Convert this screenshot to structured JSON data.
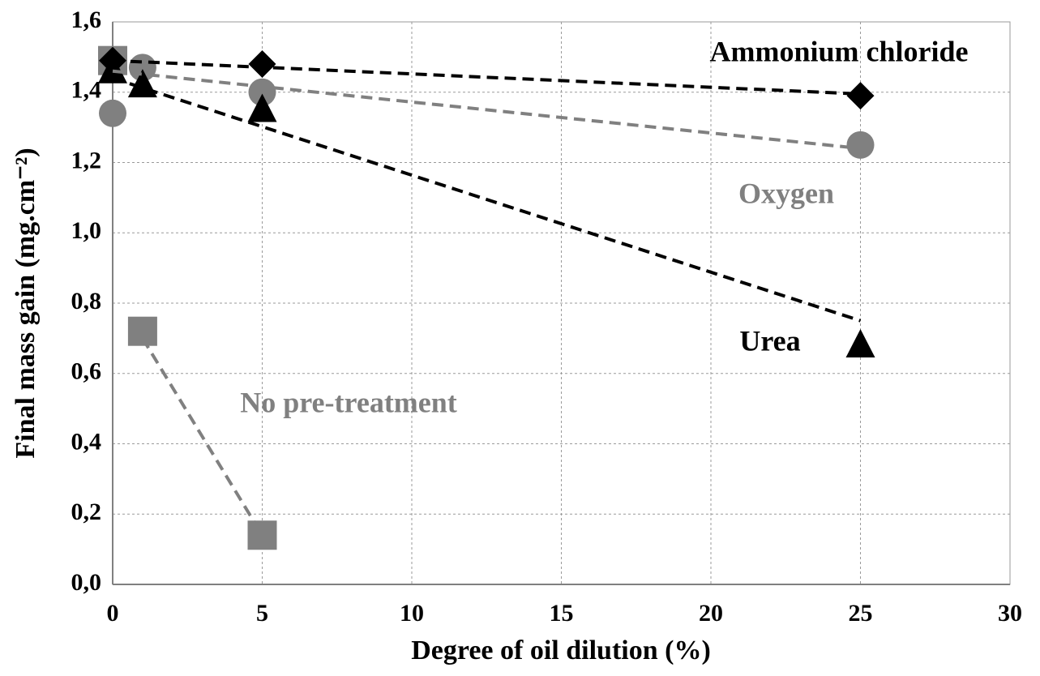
{
  "chart_data": {
    "type": "scatter",
    "xlabel": "Degree of oil dilution (%)",
    "ylabel": "Final mass gain (mg.cm⁻²)",
    "xlim": [
      0,
      30
    ],
    "xticks": [
      0,
      5,
      10,
      15,
      20,
      25,
      30
    ],
    "ylim": [
      0,
      1.6
    ],
    "yticks": [
      {
        "value": 0,
        "label": "0,0"
      },
      {
        "value": 0.2,
        "label": "0,2"
      },
      {
        "value": 0.4,
        "label": "0,4"
      },
      {
        "value": 0.6,
        "label": "0,6"
      },
      {
        "value": 0.8,
        "label": "0,8"
      },
      {
        "value": 1.0,
        "label": "1,0"
      },
      {
        "value": 1.2,
        "label": "1,2"
      },
      {
        "value": 1.4,
        "label": "1,4"
      },
      {
        "value": 1.6,
        "label": "1,6"
      }
    ],
    "grid": true,
    "series": [
      {
        "name": "No pre-treatment",
        "color": "#808080",
        "marker": "square",
        "x": [
          0,
          1,
          5
        ],
        "values": [
          1.49,
          0.72,
          0.14
        ],
        "trend": {
          "x": [
            1,
            5
          ],
          "values": [
            0.7,
            0.14
          ]
        }
      },
      {
        "name": "Oxygen",
        "color": "#808080",
        "marker": "circle",
        "x": [
          0,
          1,
          5,
          25
        ],
        "values": [
          1.34,
          1.47,
          1.4,
          1.25
        ],
        "trend": {
          "x": [
            0,
            25
          ],
          "values": [
            1.46,
            1.24
          ]
        }
      },
      {
        "name": "Urea",
        "color": "#000000",
        "marker": "triangle",
        "x": [
          0,
          1,
          5,
          25
        ],
        "values": [
          1.46,
          1.42,
          1.35,
          0.68
        ],
        "trend": {
          "x": [
            0,
            25
          ],
          "values": [
            1.44,
            0.75
          ]
        }
      },
      {
        "name": "Ammonium chloride",
        "color": "#000000",
        "marker": "diamond",
        "x": [
          0,
          5,
          25
        ],
        "values": [
          1.49,
          1.48,
          1.39
        ],
        "trend": {
          "x": [
            0,
            25
          ],
          "values": [
            1.49,
            1.395
          ]
        }
      }
    ]
  }
}
